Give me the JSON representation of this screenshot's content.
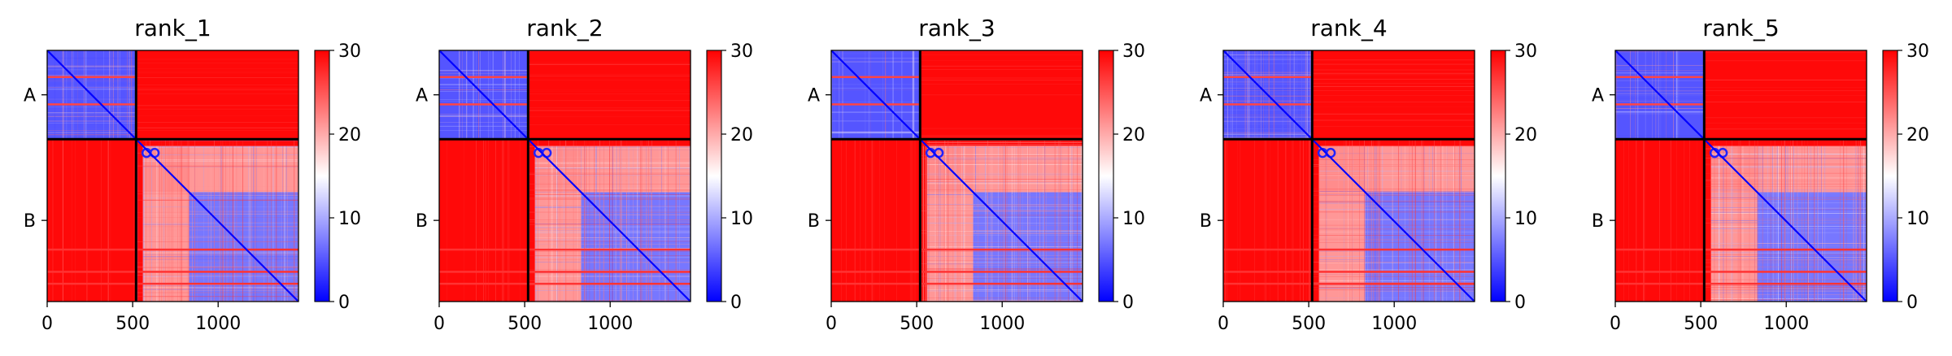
{
  "chart_data": [
    {
      "type": "heatmap",
      "title": "rank_1",
      "xlabel": "",
      "ylabel": "",
      "x_ticks": [
        0,
        500,
        1000
      ],
      "xlim": [
        0,
        1470
      ],
      "ylim": [
        1470,
        0
      ],
      "chain_boundary": 520,
      "chain_labels": [
        "A",
        "B"
      ],
      "colorbar": {
        "min": 0,
        "max": 30,
        "ticks": [
          0,
          10,
          20,
          30
        ],
        "colors": [
          "#0000ff",
          "#ffffff",
          "#ff0000"
        ]
      }
    },
    {
      "type": "heatmap",
      "title": "rank_2",
      "xlabel": "",
      "ylabel": "",
      "x_ticks": [
        0,
        500,
        1000
      ],
      "xlim": [
        0,
        1470
      ],
      "ylim": [
        1470,
        0
      ],
      "chain_boundary": 520,
      "chain_labels": [
        "A",
        "B"
      ],
      "colorbar": {
        "min": 0,
        "max": 30,
        "ticks": [
          0,
          10,
          20,
          30
        ],
        "colors": [
          "#0000ff",
          "#ffffff",
          "#ff0000"
        ]
      }
    },
    {
      "type": "heatmap",
      "title": "rank_3",
      "xlabel": "",
      "ylabel": "",
      "x_ticks": [
        0,
        500,
        1000
      ],
      "xlim": [
        0,
        1470
      ],
      "ylim": [
        1470,
        0
      ],
      "chain_boundary": 520,
      "chain_labels": [
        "A",
        "B"
      ],
      "colorbar": {
        "min": 0,
        "max": 30,
        "ticks": [
          0,
          10,
          20,
          30
        ],
        "colors": [
          "#0000ff",
          "#ffffff",
          "#ff0000"
        ]
      }
    },
    {
      "type": "heatmap",
      "title": "rank_4",
      "xlabel": "",
      "ylabel": "",
      "x_ticks": [
        0,
        500,
        1000
      ],
      "xlim": [
        0,
        1470
      ],
      "ylim": [
        1470,
        0
      ],
      "chain_boundary": 520,
      "chain_labels": [
        "A",
        "B"
      ],
      "colorbar": {
        "min": 0,
        "max": 30,
        "ticks": [
          0,
          10,
          20,
          30
        ],
        "colors": [
          "#0000ff",
          "#ffffff",
          "#ff0000"
        ]
      }
    },
    {
      "type": "heatmap",
      "title": "rank_5",
      "xlabel": "",
      "ylabel": "",
      "x_ticks": [
        0,
        500,
        1000
      ],
      "xlim": [
        0,
        1470
      ],
      "ylim": [
        1470,
        0
      ],
      "chain_boundary": 520,
      "chain_labels": [
        "A",
        "B"
      ],
      "colorbar": {
        "min": 0,
        "max": 30,
        "ticks": [
          0,
          10,
          20,
          30
        ],
        "colors": [
          "#0000ff",
          "#ffffff",
          "#ff0000"
        ]
      }
    }
  ]
}
